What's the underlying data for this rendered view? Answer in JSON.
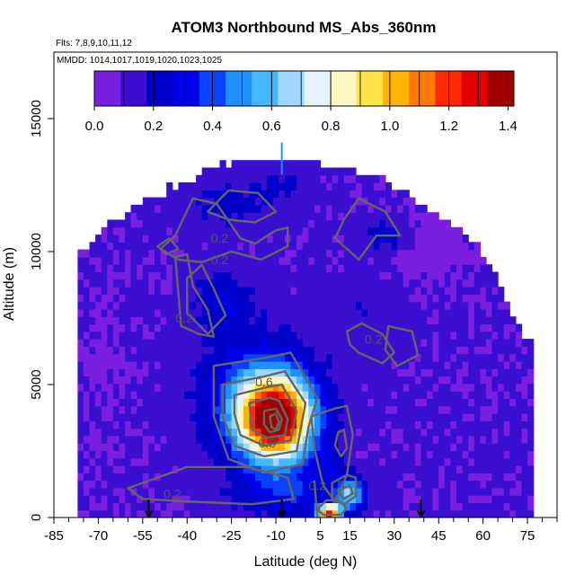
{
  "chart_data": {
    "type": "heatmap",
    "title": "ATOM3 Northbound MS_Abs_360nm",
    "flights_note": "Flts: 7,8,9,10,11,12",
    "dates_note": "MMDD: 1014,1017,1019,1020,1023,1025",
    "xlabel": "Latitude (deg N)",
    "ylabel": "Altitude (m)",
    "xlim": [
      -85,
      85
    ],
    "ylim": [
      0,
      17500
    ],
    "x_ticks": [
      -85,
      -70,
      -55,
      -40,
      -25,
      -10,
      5,
      15,
      30,
      45,
      60,
      75
    ],
    "x_tick_labels": [
      "-85",
      "-70",
      "-55",
      "-40",
      "-25",
      "-10",
      "5",
      "15",
      "30",
      "45",
      "60",
      "75"
    ],
    "y_ticks": [
      0,
      5000,
      10000,
      15000
    ],
    "y_tick_labels": [
      "0",
      "5000",
      "10000",
      "15000"
    ],
    "colorbar": {
      "min": 0.0,
      "max": 1.42,
      "ticks": [
        0.0,
        0.2,
        0.4,
        0.6,
        0.8,
        1.0,
        1.2,
        1.4
      ],
      "tick_labels": [
        "0.0",
        "0.2",
        "0.4",
        "0.6",
        "0.8",
        "1.0",
        "1.2",
        "1.4"
      ],
      "colors": [
        "#7a1fe0",
        "#3a0fd0",
        "#0000c8",
        "#0000e6",
        "#0a40ff",
        "#1e90ff",
        "#46b8ff",
        "#9fd7ff",
        "#e6f3ff",
        "#fff7c0",
        "#ffe34a",
        "#ffb400",
        "#ff7a00",
        "#ff2a00",
        "#e00000",
        "#a00000"
      ]
    },
    "contour_levels": [
      0.2,
      0.4,
      0.6,
      0.8,
      1.0,
      1.2
    ],
    "contour_labels": [
      {
        "text": "0.2",
        "lat": -29,
        "alt": 10500
      },
      {
        "text": "0.2",
        "lat": -29,
        "alt": 9700
      },
      {
        "text": "0.2",
        "lat": -41,
        "alt": 7500
      },
      {
        "text": "0.2",
        "lat": 23,
        "alt": 6700
      },
      {
        "text": "0.6",
        "lat": -14,
        "alt": 5100
      },
      {
        "text": "1",
        "lat": -10,
        "alt": 4000
      },
      {
        "text": "0.8",
        "lat": -13,
        "alt": 2800
      },
      {
        "text": "0.2",
        "lat": -45,
        "alt": 900
      },
      {
        "text": "0.2",
        "lat": 4,
        "alt": 1200
      }
    ],
    "markers": [
      {
        "lat": -53,
        "alt": 0,
        "symbol": "down-arrow"
      },
      {
        "lat": -8,
        "alt": 0,
        "symbol": "down-arrow"
      },
      {
        "lat": 39,
        "alt": 0,
        "symbol": "down-arrow"
      }
    ],
    "peak": {
      "lat": -10,
      "alt": 3600,
      "value": 1.4
    },
    "grid": false,
    "legend_placement": "top (horizontal colorbar inside plot)"
  }
}
